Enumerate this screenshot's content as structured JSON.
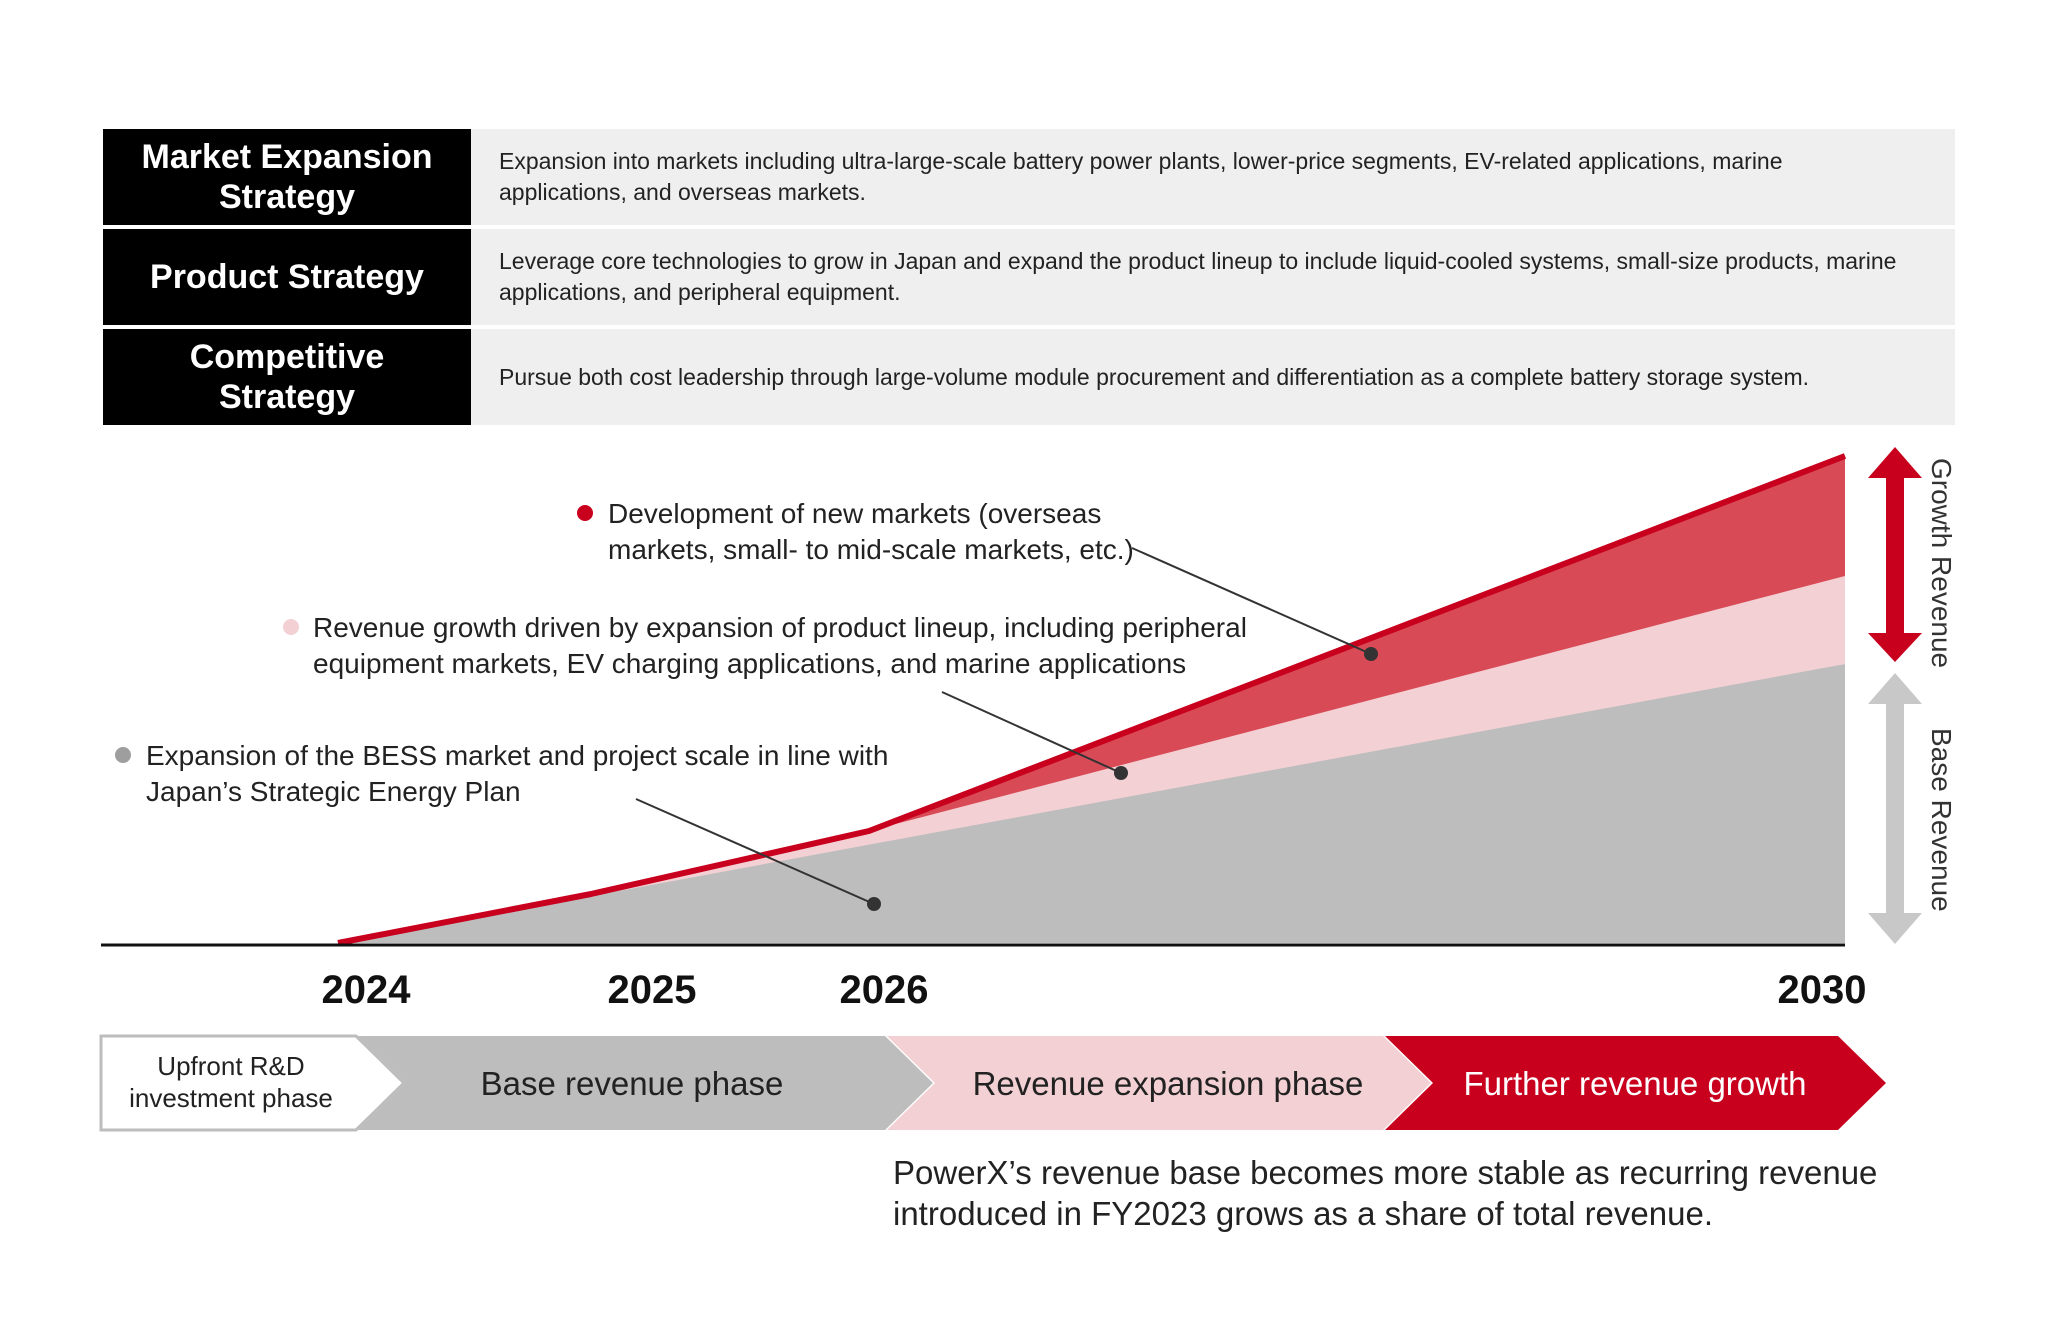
{
  "strategies": [
    {
      "title": "Market Expansion Strategy",
      "description": "Expansion into markets including ultra-large-scale battery power plants, lower-price segments, EV-related applications, marine applications, and overseas markets."
    },
    {
      "title": "Product Strategy",
      "description": "Leverage core technologies to grow in Japan and expand the product lineup to include liquid-cooled systems, small-size products, marine applications, and peripheral equipment."
    },
    {
      "title": "Competitive Strategy",
      "description": "Pursue both cost leadership through large-volume module procurement and differentiation as a complete battery storage system."
    }
  ],
  "annotations": {
    "new_markets": {
      "line1": "Development of new markets (overseas",
      "line2": "markets, small- to mid-scale markets, etc.)",
      "color": "#c8001e"
    },
    "product_lineup": {
      "line1": "Revenue growth driven by expansion of product lineup, including peripheral",
      "line2": "equipment markets, EV charging applications, and marine applications",
      "color": "#f3d0d3"
    },
    "bess_market": {
      "line1": "Expansion of the BESS market and project scale in line with",
      "line2": "Japan’s Strategic Energy Plan",
      "color": "#9e9e9e"
    }
  },
  "side_labels": {
    "growth": "Growth Revenue",
    "base": "Base Revenue"
  },
  "years": [
    "2024",
    "2025",
    "2026",
    "2030"
  ],
  "phases": {
    "rd": {
      "line1": "Upfront R&D",
      "line2": "investment phase"
    },
    "base": "Base revenue phase",
    "expansion": "Revenue expansion phase",
    "growth": "Further revenue growth"
  },
  "footnote": "PowerX’s revenue base becomes more stable as recurring revenue introduced in FY2023 grows as a share of total revenue.",
  "colors": {
    "black": "#000000",
    "red": "#c8001e",
    "red_fill": "#d94a57",
    "pink": "#f3d0d3",
    "gray": "#bdbdbd",
    "arrow_gray": "#c8c8c8",
    "label_bg": "#efefef"
  }
}
